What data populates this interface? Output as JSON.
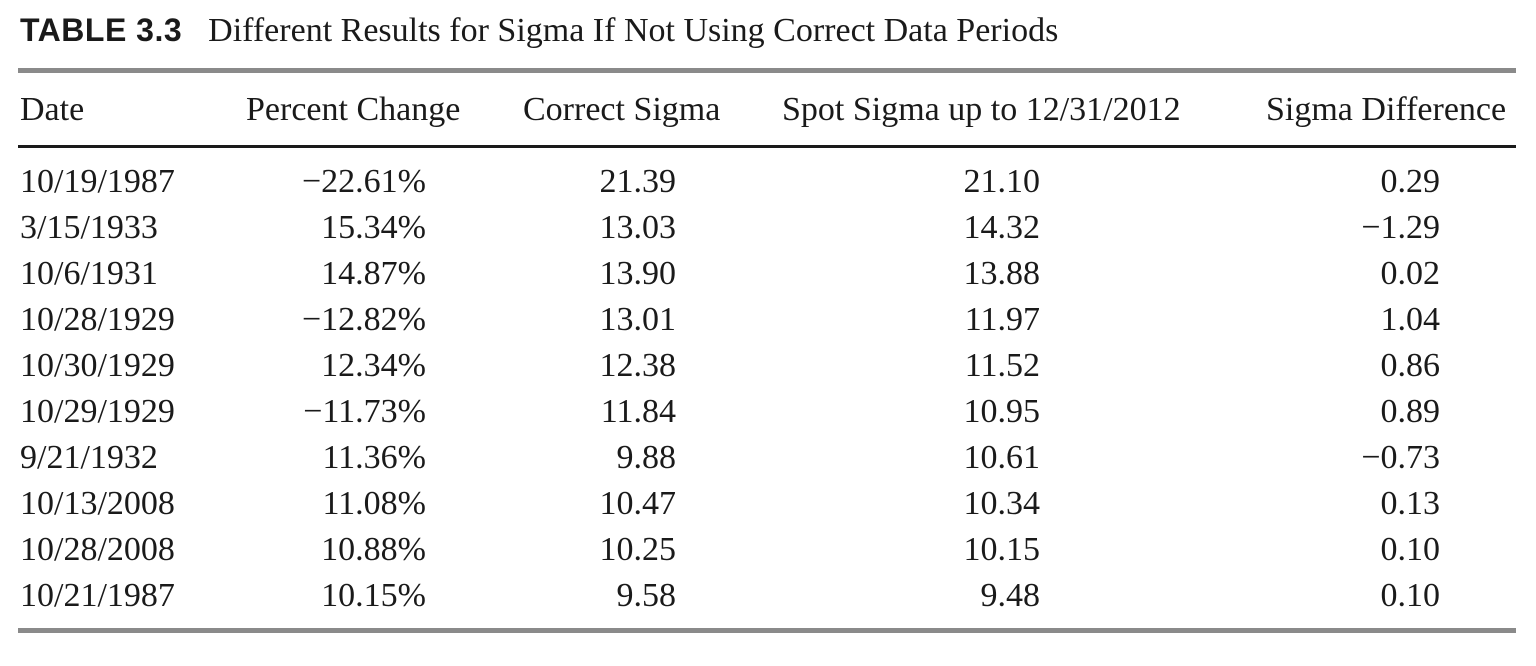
{
  "caption": {
    "label": "TABLE 3.3",
    "title": "Different Results for Sigma If Not Using Correct Data Periods"
  },
  "columns": [
    "Date",
    "Percent Change",
    "Correct Sigma",
    "Spot Sigma up to 12/31/2012",
    "Sigma Difference"
  ],
  "rows": [
    [
      "10/19/1987",
      "−22.61%",
      "21.39",
      "21.10",
      "0.29"
    ],
    [
      "3/15/1933",
      "15.34%",
      "13.03",
      "14.32",
      "−1.29"
    ],
    [
      "10/6/1931",
      "14.87%",
      "13.90",
      "13.88",
      "0.02"
    ],
    [
      "10/28/1929",
      "−12.82%",
      "13.01",
      "11.97",
      "1.04"
    ],
    [
      "10/30/1929",
      "12.34%",
      "12.38",
      "11.52",
      "0.86"
    ],
    [
      "10/29/1929",
      "−11.73%",
      "11.84",
      "10.95",
      "0.89"
    ],
    [
      "9/21/1932",
      "11.36%",
      "9.88",
      "10.61",
      "−0.73"
    ],
    [
      "10/13/2008",
      "11.08%",
      "10.47",
      "10.34",
      "0.13"
    ],
    [
      "10/28/2008",
      "10.88%",
      "10.25",
      "10.15",
      "0.10"
    ],
    [
      "10/21/1987",
      "10.15%",
      "9.58",
      "9.48",
      "0.10"
    ]
  ]
}
